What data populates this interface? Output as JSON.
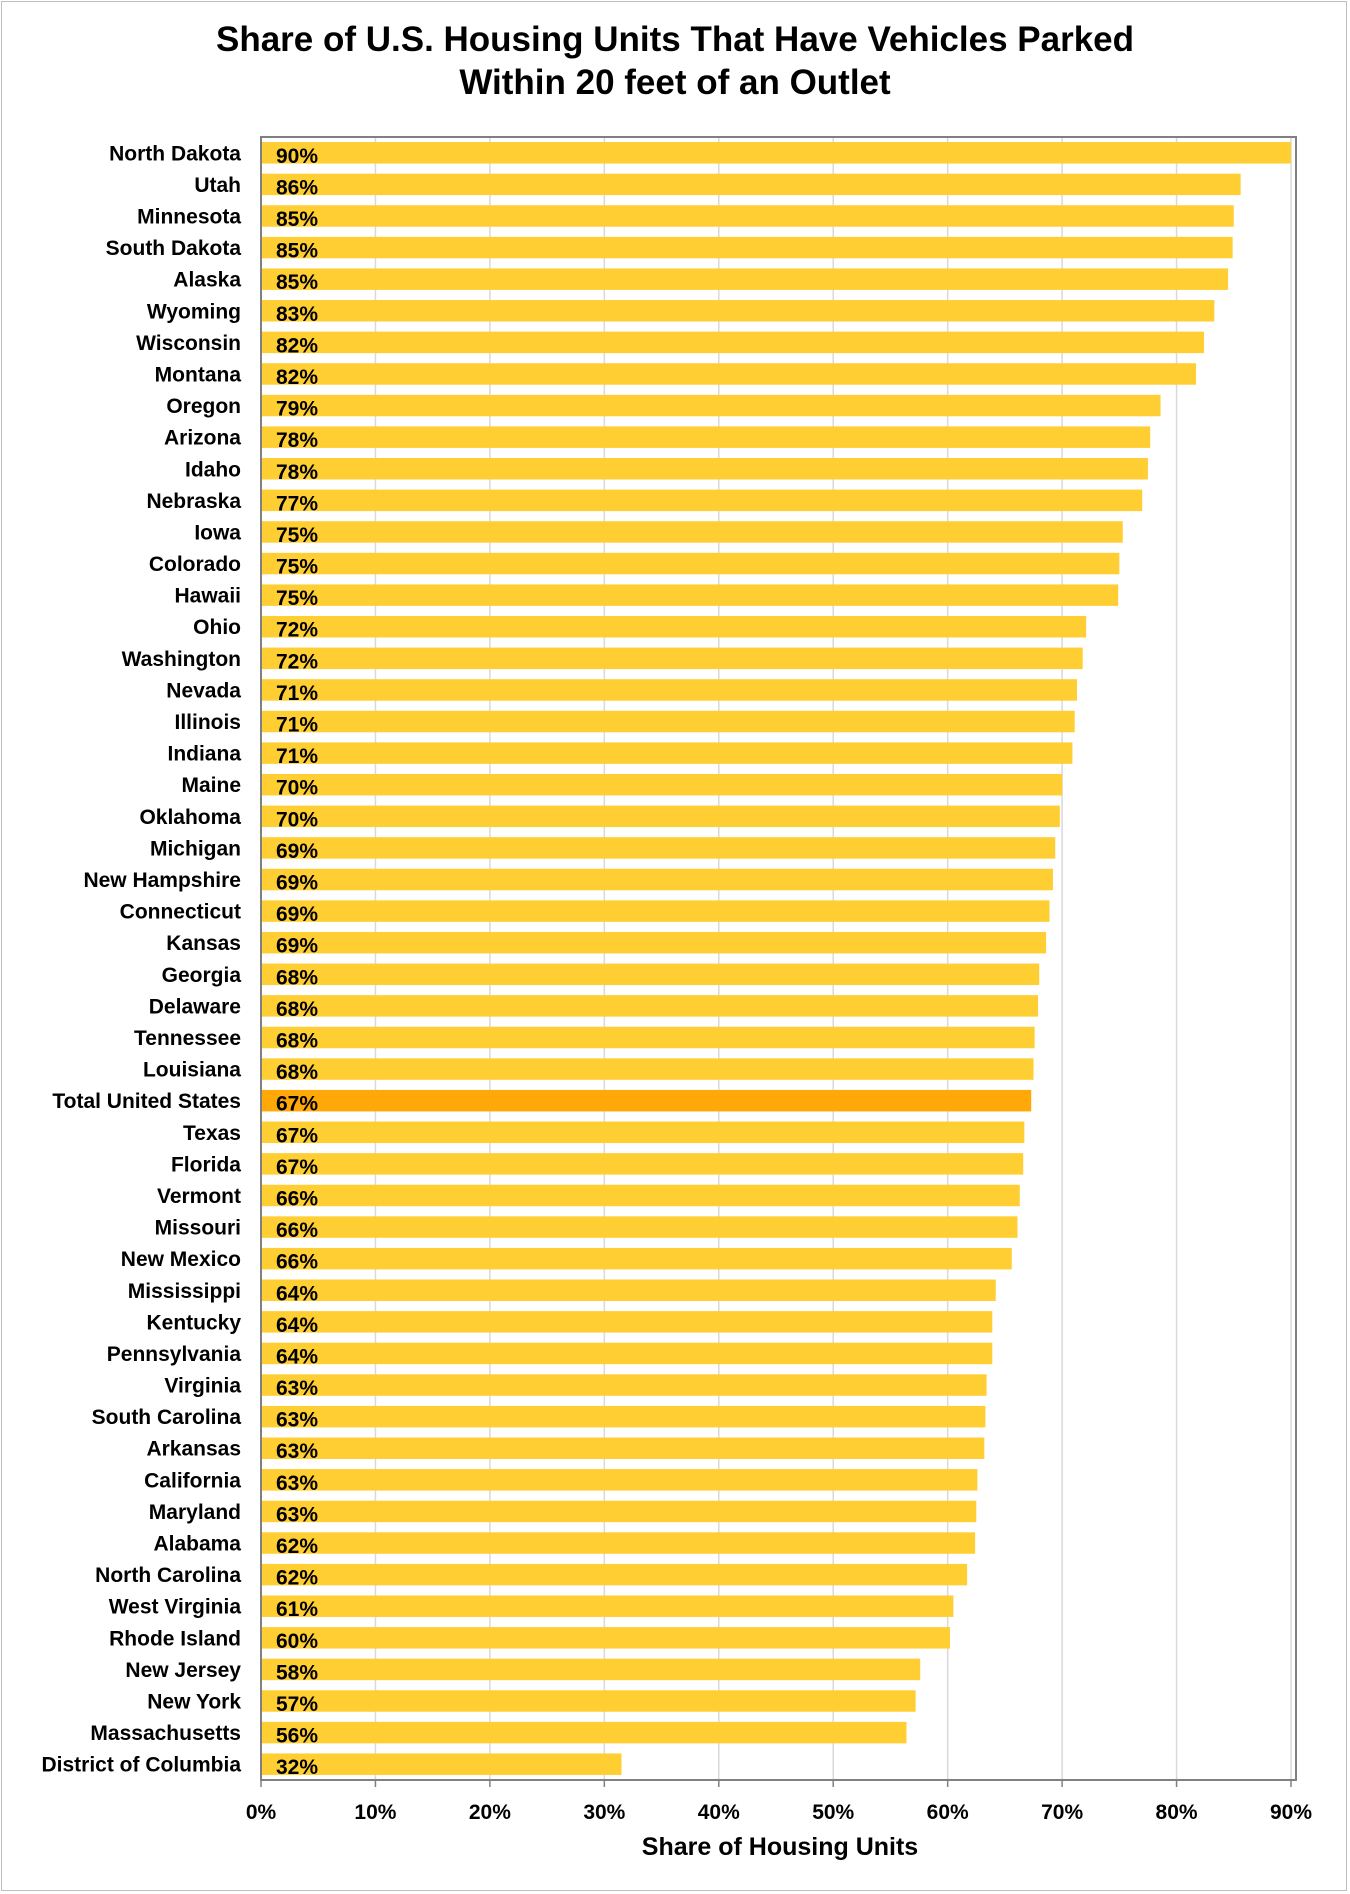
{
  "chart_data": {
    "type": "bar",
    "orientation": "horizontal",
    "title": "Share of U.S. Housing Units That Have Vehicles Parked Within 20 feet of an Outlet",
    "title_lines": [
      "Share of U.S. Housing Units That Have Vehicles Parked",
      "Within 20 feet of an Outlet"
    ],
    "xlabel": "Share of Housing Units",
    "ylabel": "",
    "xlim": [
      0,
      90
    ],
    "x_ticks": [
      "0%",
      "10%",
      "20%",
      "30%",
      "40%",
      "50%",
      "60%",
      "70%",
      "80%",
      "90%"
    ],
    "grid": "vertical",
    "legend": "none",
    "colors": {
      "bar": "#ffce33",
      "highlight": "#ffa807",
      "grid": "#d9d9d9",
      "axis": "#808080"
    },
    "highlight_category": "Total United States",
    "categories": [
      "North Dakota",
      "Utah",
      "Minnesota",
      "South Dakota",
      "Alaska",
      "Wyoming",
      "Wisconsin",
      "Montana",
      "Oregon",
      "Arizona",
      "Idaho",
      "Nebraska",
      "Iowa",
      "Colorado",
      "Hawaii",
      "Ohio",
      "Washington",
      "Nevada",
      "Illinois",
      "Indiana",
      "Maine",
      "Oklahoma",
      "Michigan",
      "New Hampshire",
      "Connecticut",
      "Kansas",
      "Georgia",
      "Delaware",
      "Tennessee",
      "Louisiana",
      "Total United States",
      "Texas",
      "Florida",
      "Vermont",
      "Missouri",
      "New Mexico",
      "Mississippi",
      "Kentucky",
      "Pennsylvania",
      "Virginia",
      "South Carolina",
      "Arkansas",
      "California",
      "Maryland",
      "Alabama",
      "North Carolina",
      "West Virginia",
      "Rhode Island",
      "New Jersey",
      "New York",
      "Massachusetts",
      "District of Columbia"
    ],
    "values": [
      90.0,
      85.6,
      85.0,
      84.9,
      84.5,
      83.3,
      82.4,
      81.7,
      78.6,
      77.7,
      77.5,
      77.0,
      75.3,
      75.0,
      74.9,
      72.1,
      71.8,
      71.3,
      71.1,
      70.9,
      70.0,
      69.8,
      69.4,
      69.2,
      68.9,
      68.6,
      68.0,
      67.9,
      67.6,
      67.5,
      67.3,
      66.7,
      66.6,
      66.3,
      66.1,
      65.6,
      64.2,
      63.9,
      63.9,
      63.4,
      63.3,
      63.2,
      62.6,
      62.5,
      62.4,
      61.7,
      60.5,
      60.2,
      57.6,
      57.2,
      56.4,
      31.5
    ],
    "value_labels": [
      "90%",
      "86%",
      "85%",
      "85%",
      "85%",
      "83%",
      "82%",
      "82%",
      "79%",
      "78%",
      "78%",
      "77%",
      "75%",
      "75%",
      "75%",
      "72%",
      "72%",
      "71%",
      "71%",
      "71%",
      "70%",
      "70%",
      "69%",
      "69%",
      "69%",
      "69%",
      "68%",
      "68%",
      "68%",
      "68%",
      "67%",
      "67%",
      "67%",
      "66%",
      "66%",
      "66%",
      "64%",
      "64%",
      "64%",
      "63%",
      "63%",
      "63%",
      "63%",
      "63%",
      "62%",
      "62%",
      "61%",
      "60%",
      "58%",
      "57%",
      "56%",
      "32%"
    ]
  }
}
